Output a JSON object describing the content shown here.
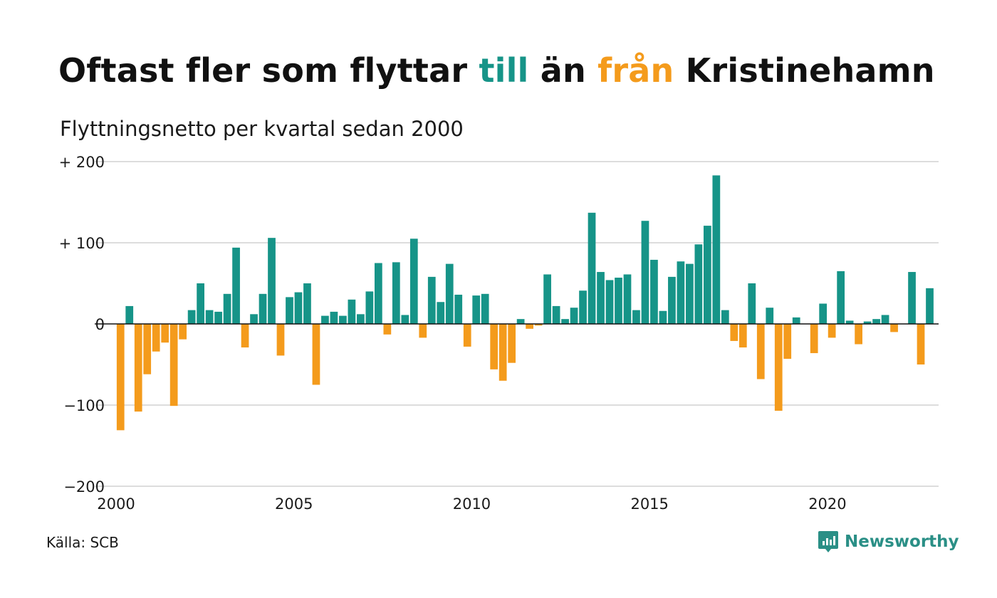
{
  "title": {
    "part1": "Oftast fler som flyttar ",
    "till": "till",
    "part2": " än ",
    "fran": "från",
    "part3": " Kristinehamn"
  },
  "subtitle": "Flyttningsnetto per kvartal sedan 2000",
  "source": "Källa: SCB",
  "brand": {
    "name": "Newsworthy",
    "icon": "newsworthy-logo-icon"
  },
  "colors": {
    "positive": "#169488",
    "negative": "#f49b1c",
    "grid": "#dddddd",
    "zero": "#111111"
  },
  "chart_data": {
    "type": "bar",
    "title": "Oftast fler som flyttar till än från Kristinehamn",
    "subtitle": "Flyttningsnetto per kvartal sedan 2000",
    "xlabel": "",
    "ylabel": "",
    "ylim": [
      -200,
      200
    ],
    "yticks": [
      {
        "value": 200,
        "label": "+ 200"
      },
      {
        "value": 100,
        "label": "+ 100"
      },
      {
        "value": 0,
        "label": "0"
      },
      {
        "value": -100,
        "label": "−100"
      },
      {
        "value": -200,
        "label": "−200"
      }
    ],
    "xlim": [
      2000,
      2023.125
    ],
    "xticks": [
      {
        "value": 2000,
        "label": "2000"
      },
      {
        "value": 2005,
        "label": "2005"
      },
      {
        "value": 2010,
        "label": "2010"
      },
      {
        "value": 2015,
        "label": "2015"
      },
      {
        "value": 2020,
        "label": "2020"
      }
    ],
    "grid": true,
    "start_quarter": "2000 K1",
    "values": [
      -131,
      22,
      -108,
      -62,
      -34,
      -23,
      -101,
      -19,
      17,
      50,
      17,
      15,
      37,
      94,
      -29,
      12,
      37,
      106,
      -39,
      33,
      39,
      50,
      -75,
      10,
      15,
      10,
      30,
      12,
      40,
      75,
      -13,
      76,
      11,
      105,
      -17,
      58,
      27,
      74,
      36,
      -28,
      35,
      37,
      -56,
      -70,
      -48,
      6,
      -6,
      -2,
      61,
      22,
      6,
      20,
      41,
      137,
      64,
      54,
      57,
      61,
      17,
      127,
      79,
      16,
      58,
      77,
      74,
      98,
      121,
      183,
      17,
      -21,
      -29,
      50,
      -68,
      20,
      -107,
      -43,
      8,
      0,
      -36,
      25,
      -17,
      65,
      4,
      -25,
      3,
      6,
      11,
      -10,
      0,
      64,
      -50,
      44
    ]
  }
}
